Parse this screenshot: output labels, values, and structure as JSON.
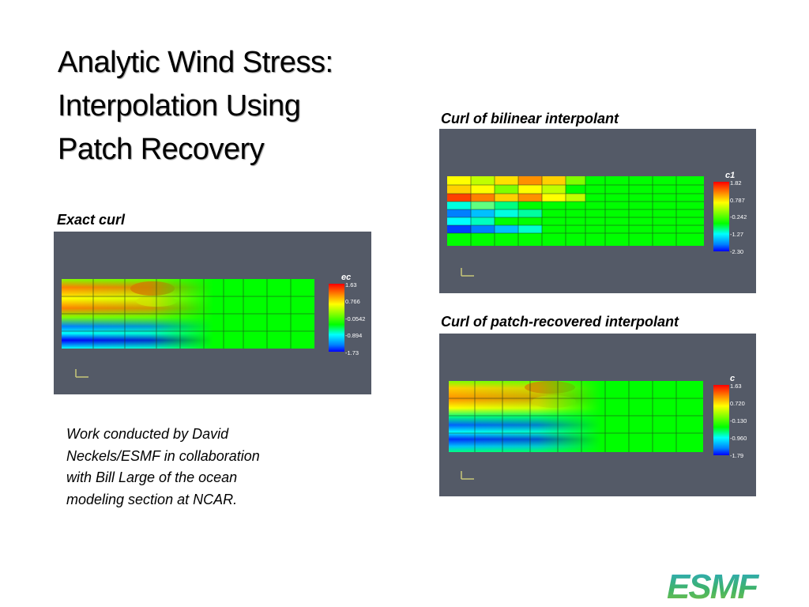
{
  "slide": {
    "title_lines": [
      "Analytic Wind Stress:",
      "Interpolation Using",
      "Patch Recovery"
    ],
    "note_lines": [
      "Work conducted by David",
      "Neckels/ESMF in collaboration",
      "with Bill Large of the ocean",
      "modeling section at NCAR."
    ],
    "logo_text": "ESMF"
  },
  "colormap": [
    "#0000ff",
    "#0080ff",
    "#00ffff",
    "#00ff00",
    "#80ff00",
    "#ffff00",
    "#ff8000",
    "#ff0000"
  ],
  "panels": {
    "exact": {
      "caption": "Exact curl",
      "legend_title": "ec",
      "legend_ticks": [
        "1.63",
        "0.766",
        "-0.0542",
        "-0.894",
        "-1.73"
      ]
    },
    "bilinear": {
      "caption": "Curl of bilinear interpolant",
      "legend_title": "c1",
      "legend_ticks": [
        "1.82",
        "0.787",
        "-0.242",
        "-1.27",
        "-2.30"
      ]
    },
    "patch": {
      "caption": "Curl of patch-recovered interpolant",
      "legend_title": "c",
      "legend_ticks": [
        "1.63",
        "0.720",
        "-0.130",
        "-0.960",
        "-1.79"
      ]
    }
  }
}
